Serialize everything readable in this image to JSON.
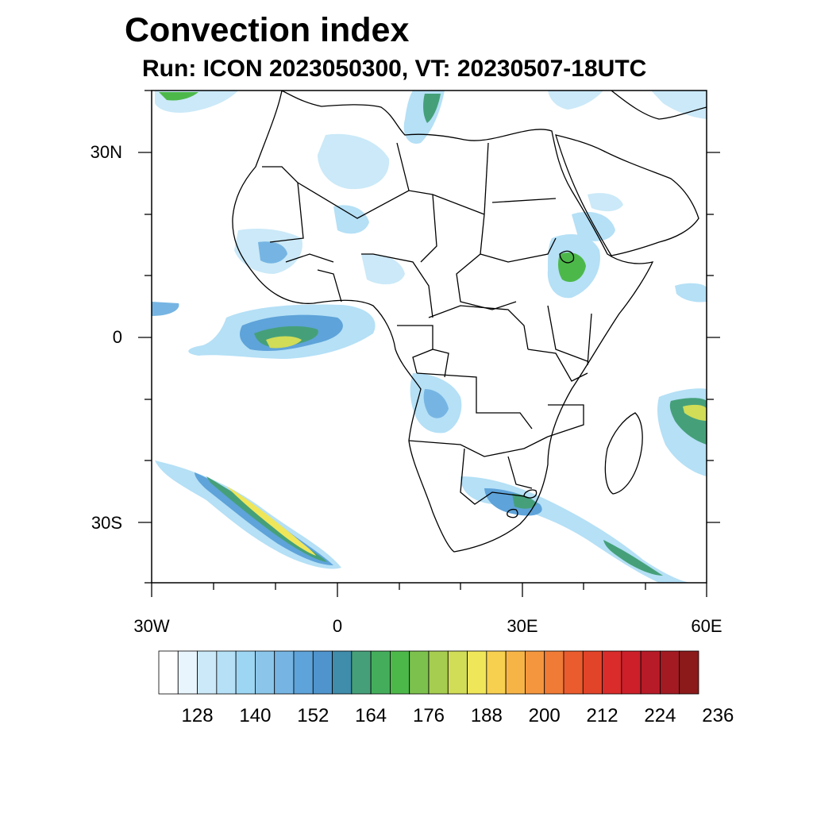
{
  "title": "Convection index",
  "subtitle": "Run: ICON 2023050300,  VT: 20230507-18UTC",
  "map": {
    "lat_labels": [
      "30N",
      "0",
      "30S"
    ],
    "lon_labels": [
      "30W",
      "0",
      "30E",
      "60E"
    ],
    "lat_range": [
      -40,
      40
    ],
    "lon_range": [
      -30,
      60
    ]
  },
  "colorbar": {
    "tick_labels": [
      "128",
      "140",
      "152",
      "164",
      "176",
      "188",
      "200",
      "212",
      "224",
      "236"
    ],
    "colors": [
      "#ffffff",
      "#e9f5fd",
      "#cbe9f8",
      "#b5e0f6",
      "#9dd6f3",
      "#8bc6ea",
      "#76b5e3",
      "#5ea3d9",
      "#4f94cc",
      "#3f8cab",
      "#45a07a",
      "#44ad5c",
      "#4db84a",
      "#7cc14d",
      "#a6cd4f",
      "#d1dc57",
      "#f0e659",
      "#f8d04f",
      "#f7b446",
      "#f4963e",
      "#f07b36",
      "#ea5c2d",
      "#e24429",
      "#d92c2b",
      "#cc1f2a",
      "#b61b27",
      "#a31a22",
      "#8c1a1a"
    ]
  }
}
